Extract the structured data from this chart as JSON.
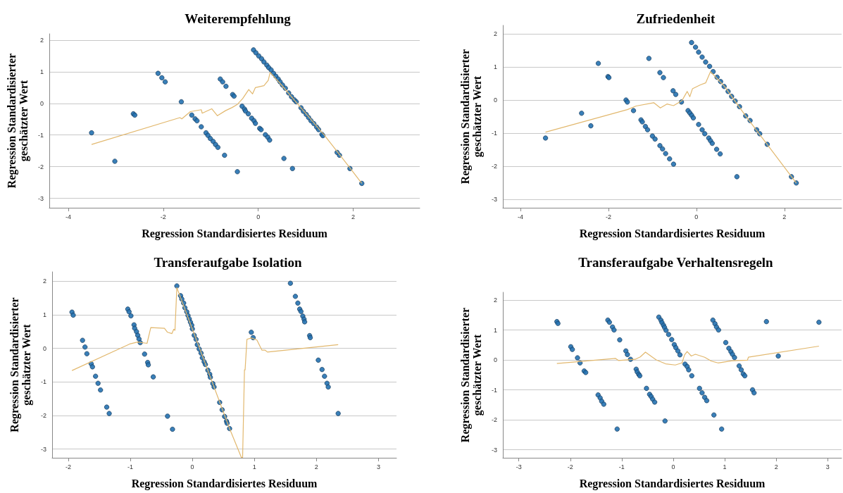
{
  "chart_data": [
    {
      "type": "scatter",
      "title": "Weiterempfehlung",
      "xlabel": "Regression Standardisiertes Residuum",
      "ylabel": "Regression Standardisierter\ngeschätzter Wert",
      "xlim": [
        -4.4,
        3.4
      ],
      "ylim": [
        -3.3,
        2.2
      ],
      "xticks": [
        -4,
        -2,
        0,
        2
      ],
      "yticks": [
        -3,
        -2,
        -1,
        0,
        1,
        2
      ],
      "grid": "y",
      "marker": "circle",
      "series": [
        {
          "type": "scatter",
          "color": "#2471b0",
          "x": [
            -3.51,
            -3.02,
            -2.63,
            -2.6,
            -2.11,
            -2.03,
            -1.96,
            -1.62,
            -1.4,
            -1.33,
            -1.29,
            -1.2,
            -1.1,
            -1.06,
            -1.01,
            -0.95,
            -0.9,
            -0.85,
            -0.71,
            -0.8,
            -0.75,
            -0.68,
            -0.54,
            -0.51,
            -0.44,
            -0.34,
            -0.29,
            -0.27,
            -0.21,
            -0.14,
            -0.09,
            -0.06,
            0.03,
            0.06,
            0.15,
            0.2,
            0.24,
            0.54,
            0.72,
            -0.1,
            -0.05,
            0.01,
            0.07,
            0.12,
            0.18,
            0.22,
            0.27,
            0.32,
            0.37,
            0.42,
            0.46,
            0.51,
            0.57,
            0.64,
            0.7,
            0.76,
            0.8,
            0.9,
            0.95,
            1.01,
            1.06,
            1.11,
            1.17,
            1.23,
            1.27,
            1.34,
            1.36,
            1.66,
            1.71,
            1.93,
            2.18
          ],
          "values": [
            -0.93,
            -1.83,
            -0.33,
            -0.37,
            0.95,
            0.81,
            0.68,
            0.05,
            -0.37,
            -0.49,
            -0.55,
            -0.74,
            -0.93,
            -1.01,
            -1.11,
            -1.2,
            -1.3,
            -1.39,
            -1.64,
            0.77,
            0.68,
            0.54,
            0.28,
            0.23,
            -2.16,
            -0.09,
            -0.18,
            -0.24,
            -0.33,
            -0.47,
            -0.55,
            -0.63,
            -0.79,
            -0.83,
            -0.99,
            -1.07,
            -1.16,
            -1.74,
            -2.06,
            1.69,
            1.6,
            1.5,
            1.41,
            1.31,
            1.21,
            1.13,
            1.06,
            0.95,
            0.86,
            0.77,
            0.68,
            0.58,
            0.48,
            0.33,
            0.21,
            0.11,
            0.05,
            -0.14,
            -0.25,
            -0.35,
            -0.45,
            -0.55,
            -0.64,
            -0.75,
            -0.83,
            -0.98,
            -1.02,
            -1.55,
            -1.64,
            -2.06,
            -2.53
          ]
        },
        {
          "type": "line",
          "color": "#e2b86e",
          "marker": "none",
          "x": [
            -3.51,
            -1.65,
            -1.61,
            -1.43,
            -1.2,
            -1.18,
            -0.98,
            -0.86,
            -0.69,
            -0.55,
            -0.44,
            -0.33,
            -0.2,
            -0.12,
            -0.06,
            0.12,
            0.21,
            0.25,
            0.49,
            0.83,
            1.4,
            1.91,
            2.18
          ],
          "values": [
            -1.3,
            -0.45,
            -0.49,
            -0.26,
            -0.2,
            -0.31,
            -0.17,
            -0.39,
            -0.23,
            -0.13,
            -0.03,
            0.15,
            0.44,
            0.3,
            0.5,
            0.56,
            0.73,
            0.98,
            0.58,
            -0.02,
            -1.02,
            -2.0,
            -2.53
          ]
        }
      ]
    },
    {
      "type": "scatter",
      "title": "Zufriedenheit",
      "xlabel": "Regression Standardisiertes Residuum",
      "ylabel": "Regression Standardisierter\ngeschätzter Wert",
      "xlim": [
        -4.4,
        3.3
      ],
      "ylim": [
        -3.26,
        2.26
      ],
      "xticks": [
        -4,
        -2,
        0,
        2
      ],
      "yticks": [
        -3,
        -2,
        -1,
        0,
        1,
        2
      ],
      "grid": "y",
      "marker": "circle",
      "series": [
        {
          "type": "scatter",
          "color": "#2471b0",
          "x": [
            -3.43,
            -2.61,
            -2.4,
            -2.23,
            -2.01,
            -1.99,
            -1.6,
            -1.57,
            -1.43,
            -1.08,
            -1.26,
            -1.23,
            -1.16,
            -1.11,
            -1.0,
            -0.94,
            -0.83,
            -0.77,
            -0.7,
            -0.61,
            -0.52,
            -0.83,
            -0.75,
            -0.53,
            -0.47,
            -0.34,
            -0.19,
            -0.15,
            -0.11,
            -0.07,
            0.05,
            0.13,
            0.19,
            0.28,
            0.32,
            0.36,
            0.46,
            0.54,
            0.92,
            -0.11,
            -0.02,
            0.05,
            0.13,
            0.21,
            0.3,
            0.38,
            0.47,
            0.55,
            0.63,
            0.72,
            0.8,
            0.88,
            0.98,
            1.12,
            1.22,
            1.37,
            1.44,
            1.61,
            2.16,
            2.27
          ],
          "values": [
            -1.15,
            -0.4,
            -0.78,
            1.11,
            0.71,
            0.68,
            0.0,
            -0.06,
            -0.32,
            1.26,
            -0.6,
            -0.66,
            -0.8,
            -0.9,
            -1.09,
            -1.18,
            -1.38,
            -1.48,
            -1.62,
            -1.78,
            -1.94,
            0.83,
            0.68,
            0.28,
            0.17,
            -0.06,
            -0.32,
            -0.39,
            -0.46,
            -0.54,
            -0.74,
            -0.9,
            -1.02,
            -1.15,
            -1.23,
            -1.31,
            -1.49,
            -1.63,
            -2.32,
            1.74,
            1.6,
            1.45,
            1.3,
            1.15,
            1.02,
            0.86,
            0.69,
            0.56,
            0.41,
            0.26,
            0.11,
            -0.03,
            -0.2,
            -0.48,
            -0.62,
            -0.9,
            -1.02,
            -1.34,
            -2.32,
            -2.51
          ]
        },
        {
          "type": "line",
          "color": "#e2b86e",
          "marker": "none",
          "x": [
            -3.43,
            -1.57,
            -1.37,
            -0.97,
            -0.82,
            -0.67,
            -0.52,
            -0.33,
            -0.21,
            -0.15,
            -0.09,
            0.09,
            0.21,
            0.32,
            0.64,
            1.12,
            2.27
          ],
          "values": [
            -0.97,
            -0.29,
            -0.18,
            -0.08,
            -0.24,
            -0.12,
            -0.17,
            -0.02,
            0.26,
            0.1,
            0.34,
            0.46,
            0.52,
            0.86,
            0.41,
            -0.48,
            -2.51
          ]
        }
      ]
    },
    {
      "type": "scatter",
      "title": "Transferaufgabe Isolation",
      "xlabel": "Regression Standardisiertes Residuum",
      "ylabel": "Regression Standardisierter\ngeschätzter Wert",
      "xlim": [
        -2.26,
        3.29
      ],
      "ylim": [
        -3.26,
        2.28
      ],
      "xticks": [
        -2,
        -1,
        0,
        1,
        2,
        3
      ],
      "yticks": [
        -3,
        -2,
        -1,
        0,
        1,
        2
      ],
      "grid": "y",
      "marker": "circle",
      "series": [
        {
          "type": "scatter",
          "color": "#2471b0",
          "x": [
            -1.94,
            -1.92,
            -1.77,
            -1.73,
            -1.7,
            -1.63,
            -1.61,
            -1.56,
            -1.52,
            -1.48,
            -1.38,
            -1.34,
            -1.04,
            -1.02,
            -0.99,
            -0.94,
            -0.93,
            -0.9,
            -0.88,
            -0.86,
            -0.84,
            -0.77,
            -0.72,
            -0.71,
            -0.63,
            -0.4,
            -0.32,
            -0.25,
            -0.19,
            -0.17,
            -0.14,
            -0.12,
            -0.09,
            -0.07,
            -0.05,
            -0.03,
            -0.01,
            0.0,
            0.03,
            0.06,
            0.08,
            0.11,
            0.14,
            0.16,
            0.19,
            0.21,
            0.25,
            0.28,
            0.29,
            0.33,
            0.35,
            0.44,
            0.48,
            0.52,
            0.55,
            0.56,
            0.6,
            0.95,
            0.98,
            1.58,
            1.66,
            1.7,
            1.73,
            1.75,
            1.78,
            1.8,
            1.81,
            1.89,
            1.9,
            2.03,
            2.09,
            2.13,
            2.17,
            2.19,
            2.35
          ],
          "values": [
            1.08,
            0.99,
            0.24,
            0.04,
            -0.16,
            -0.46,
            -0.55,
            -0.83,
            -1.04,
            -1.24,
            -1.75,
            -1.94,
            1.17,
            1.09,
            0.97,
            0.7,
            0.6,
            0.5,
            0.39,
            0.28,
            0.17,
            -0.17,
            -0.42,
            -0.49,
            -0.85,
            -2.02,
            -2.41,
            1.86,
            1.57,
            1.47,
            1.35,
            1.21,
            1.09,
            0.98,
            0.88,
            0.78,
            0.69,
            0.58,
            0.39,
            0.27,
            0.11,
            -0.02,
            -0.14,
            -0.28,
            -0.4,
            -0.48,
            -0.65,
            -0.77,
            -0.86,
            -1.05,
            -1.15,
            -1.61,
            -1.83,
            -2.03,
            -2.17,
            -2.23,
            -2.39,
            0.48,
            0.32,
            1.94,
            1.55,
            1.35,
            1.17,
            1.1,
            0.96,
            0.87,
            0.79,
            0.38,
            0.32,
            -0.35,
            -0.63,
            -0.83,
            -1.04,
            -1.15,
            -1.94
          ]
        },
        {
          "type": "line",
          "color": "#e2b86e",
          "marker": "none",
          "x": [
            -1.94,
            -1.01,
            -0.88,
            -0.73,
            -0.67,
            -0.45,
            -0.4,
            -0.33,
            -0.3,
            -0.28,
            -0.25,
            0.0,
            0.6,
            0.79,
            0.81,
            0.84,
            0.85,
            0.88,
            0.95,
            1.04,
            1.12,
            1.17,
            1.21,
            2.35
          ],
          "values": [
            -0.66,
            0.13,
            0.19,
            0.15,
            0.62,
            0.6,
            0.48,
            0.44,
            0.57,
            0.54,
            1.81,
            0.58,
            -2.39,
            -3.25,
            -3.25,
            -0.64,
            -0.64,
            0.27,
            0.31,
            0.25,
            -0.05,
            -0.05,
            -0.11,
            0.11
          ]
        }
      ]
    },
    {
      "type": "scatter",
      "title": "Transferaufgabe Verhaltensregeln",
      "xlabel": "Regression Standardisiertes Residuum",
      "ylabel": "Regression Standardisierter\ngeschätzter Wert",
      "xlim": [
        -3.31,
        3.27
      ],
      "ylim": [
        -3.27,
        2.26
      ],
      "xticks": [
        -3,
        -2,
        -1,
        0,
        1,
        2,
        3
      ],
      "yticks": [
        -3,
        -2,
        -1,
        0,
        1,
        2
      ],
      "grid": "y",
      "marker": "circle",
      "series": [
        {
          "type": "scatter",
          "color": "#2471b0",
          "x": [
            -2.26,
            -2.24,
            -1.99,
            -1.96,
            -1.86,
            -1.81,
            -1.73,
            -1.7,
            -1.46,
            -1.42,
            -1.39,
            -1.35,
            -1.27,
            -1.24,
            -1.18,
            -1.15,
            -1.04,
            -1.09,
            -0.92,
            -0.89,
            -0.83,
            -0.72,
            -0.7,
            -0.67,
            -0.65,
            -0.52,
            -0.46,
            -0.43,
            -0.4,
            -0.36,
            -0.16,
            -0.28,
            -0.24,
            -0.22,
            -0.19,
            -0.17,
            -0.14,
            -0.09,
            -0.03,
            0.02,
            0.05,
            0.09,
            0.13,
            0.23,
            0.27,
            0.3,
            0.36,
            0.51,
            0.56,
            0.61,
            0.65,
            0.79,
            0.94,
            0.77,
            0.81,
            0.84,
            0.88,
            1.02,
            1.08,
            1.12,
            1.15,
            1.19,
            1.28,
            1.32,
            1.36,
            1.39,
            1.54,
            1.57,
            1.81,
            2.04,
            2.83
          ],
          "values": [
            1.28,
            1.22,
            0.44,
            0.35,
            0.07,
            -0.1,
            -0.37,
            -0.42,
            -1.17,
            -1.27,
            -1.38,
            -1.48,
            1.33,
            1.26,
            1.1,
            1.0,
            0.67,
            -2.31,
            0.3,
            0.18,
            0.02,
            -0.31,
            -0.4,
            -0.48,
            -0.53,
            -0.95,
            -1.15,
            -1.22,
            -1.31,
            -1.41,
            -2.04,
            1.43,
            1.33,
            1.25,
            1.16,
            1.09,
            0.99,
            0.85,
            0.68,
            0.51,
            0.41,
            0.3,
            0.17,
            -0.14,
            -0.22,
            -0.33,
            -0.53,
            -0.95,
            -1.1,
            -1.25,
            -1.36,
            -1.84,
            -2.31,
            1.33,
            1.21,
            1.1,
            1.0,
            0.58,
            0.39,
            0.28,
            0.19,
            0.08,
            -0.2,
            -0.33,
            -0.47,
            -0.53,
            -1.0,
            -1.1,
            1.28,
            0.13,
            1.26
          ]
        },
        {
          "type": "line",
          "color": "#e2b86e",
          "marker": "none",
          "x": [
            -2.26,
            -1.12,
            -1.06,
            -0.74,
            -0.64,
            -0.54,
            -0.46,
            -0.33,
            -0.15,
            0.04,
            0.17,
            0.22,
            0.27,
            0.35,
            0.43,
            0.61,
            0.74,
            0.87,
            1.13,
            1.44,
            1.46,
            2.83
          ],
          "values": [
            -0.12,
            0.05,
            -0.02,
            0.02,
            0.1,
            0.26,
            0.16,
            0.0,
            -0.13,
            -0.17,
            -0.1,
            0.17,
            0.28,
            0.13,
            0.19,
            0.09,
            -0.04,
            -0.1,
            -0.03,
            -0.01,
            0.09,
            0.46
          ]
        }
      ]
    }
  ]
}
